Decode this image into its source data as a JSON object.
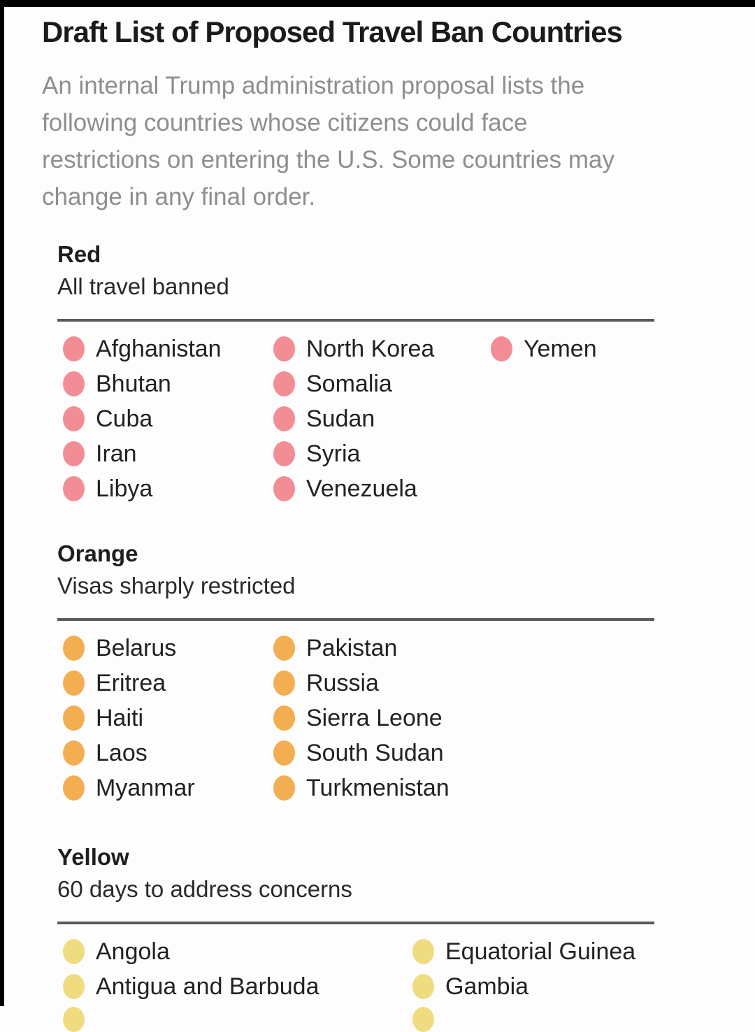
{
  "title": "Draft List of Proposed Travel Ban Countries",
  "subtitle": "An internal Trump administration proposal lists the\nfollowing countries whose citizens could face\nrestrictions on entering the U.S. Some countries may\nchange in any final order.",
  "sections": [
    {
      "name": "Red",
      "description": "All travel banned",
      "dot_color": "#f28d96",
      "columns": [
        [
          "Afghanistan",
          "Bhutan",
          "Cuba",
          "Iran",
          "Libya"
        ],
        [
          "North Korea",
          "Somalia",
          "Sudan",
          "Syria",
          "Venezuela"
        ],
        [
          "Yemen"
        ]
      ],
      "partial_next_dots": false
    },
    {
      "name": "Orange",
      "description": "Visas sharply restricted",
      "dot_color": "#f3ae52",
      "columns": [
        [
          "Belarus",
          "Eritrea",
          "Haiti",
          "Laos",
          "Myanmar"
        ],
        [
          "Pakistan",
          "Russia",
          "Sierra Leone",
          "South Sudan",
          "Turkmenistan"
        ]
      ],
      "partial_next_dots": false
    },
    {
      "name": "Yellow",
      "description": "60 days to address concerns",
      "dot_color": "#f0dc80",
      "columns": [
        [
          "Angola",
          "Antigua and Barbuda"
        ],
        [
          "Equatorial Guinea",
          "Gambia"
        ]
      ],
      "partial_next_dots": true
    }
  ]
}
